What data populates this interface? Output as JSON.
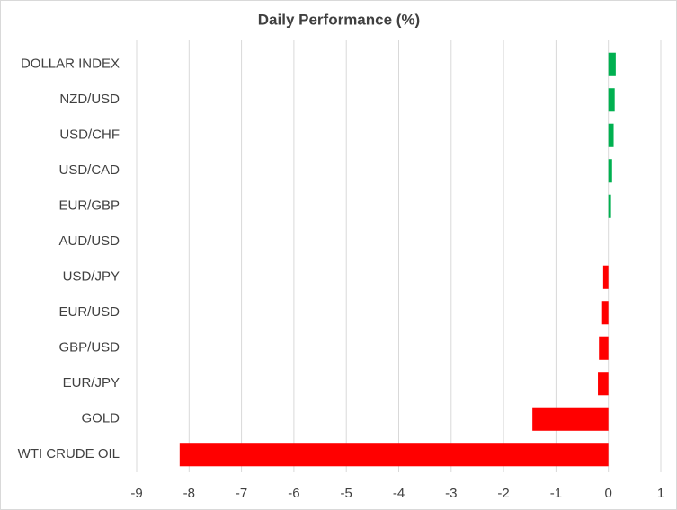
{
  "chart_data": {
    "type": "hbar",
    "title": "Daily Performance (%)",
    "categories": [
      "DOLLAR INDEX",
      "NZD/USD",
      "USD/CHF",
      "USD/CAD",
      "EUR/GBP",
      "AUD/USD",
      "USD/JPY",
      "EUR/USD",
      "GBP/USD",
      "EUR/JPY",
      "GOLD",
      "WTI CRUDE OIL"
    ],
    "values": [
      0.14,
      0.12,
      0.1,
      0.07,
      0.05,
      0,
      -0.1,
      -0.12,
      -0.18,
      -0.2,
      -1.45,
      -8.18
    ],
    "positive_color": "#00b050",
    "negative_color": "#ff0000",
    "xlim": [
      -9,
      1
    ],
    "xticks": [
      -9,
      -8,
      -7,
      -6,
      -5,
      -4,
      -3,
      -2,
      -1,
      0,
      1
    ],
    "grid": true
  }
}
